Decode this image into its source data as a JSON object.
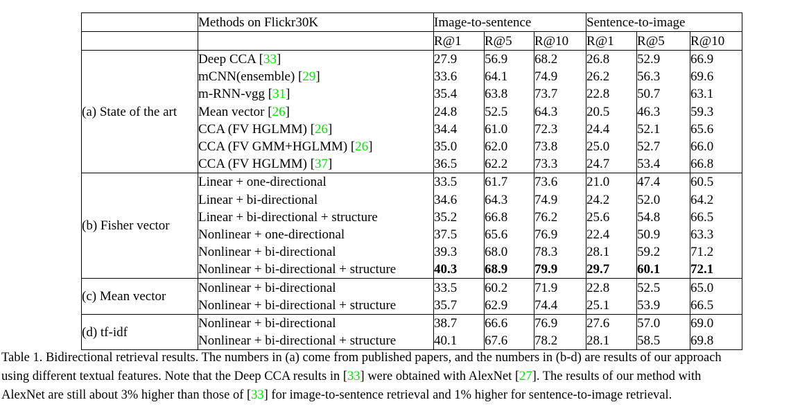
{
  "colors": {
    "citation_green": "#00E600",
    "text": "#000000",
    "border": "#000000",
    "background": "#ffffff"
  },
  "table": {
    "header": {
      "corner": "",
      "methods_label": "Methods on Flickr30K",
      "groups": [
        {
          "label": "Image-to-sentence"
        },
        {
          "label": "Sentence-to-image"
        }
      ],
      "metrics": [
        "R@1",
        "R@5",
        "R@10"
      ]
    },
    "sections": [
      {
        "label": "(a) State of the art",
        "rows": [
          {
            "method": "Deep CCA",
            "cite": "33",
            "i2s": [
              "27.9",
              "56.9",
              "68.2"
            ],
            "s2i": [
              "26.8",
              "52.9",
              "66.9"
            ],
            "bold": false
          },
          {
            "method": "mCNN(ensemble)",
            "cite": "29",
            "i2s": [
              "33.6",
              "64.1",
              "74.9"
            ],
            "s2i": [
              "26.2",
              "56.3",
              "69.6"
            ],
            "bold": false
          },
          {
            "method": "m-RNN-vgg",
            "cite": "31",
            "i2s": [
              "35.4",
              "63.8",
              "73.7"
            ],
            "s2i": [
              "22.8",
              "50.7",
              "63.1"
            ],
            "bold": false
          },
          {
            "method": "Mean vector",
            "cite": "26",
            "i2s": [
              "24.8",
              "52.5",
              "64.3"
            ],
            "s2i": [
              "20.5",
              "46.3",
              "59.3"
            ],
            "bold": false
          },
          {
            "method": "CCA (FV HGLMM)",
            "cite": "26",
            "i2s": [
              "34.4",
              "61.0",
              "72.3"
            ],
            "s2i": [
              "24.4",
              "52.1",
              "65.6"
            ],
            "bold": false
          },
          {
            "method": "CCA (FV GMM+HGLMM)",
            "cite": "26",
            "i2s": [
              "35.0",
              "62.0",
              "73.8"
            ],
            "s2i": [
              "25.0",
              "52.7",
              "66.0"
            ],
            "bold": false
          },
          {
            "method": "CCA (FV HGLMM)",
            "cite": "37",
            "i2s": [
              "36.5",
              "62.2",
              "73.3"
            ],
            "s2i": [
              "24.7",
              "53.4",
              "66.8"
            ],
            "bold": false
          }
        ]
      },
      {
        "label": "(b) Fisher vector",
        "rows": [
          {
            "method": "Linear + one-directional",
            "cite": null,
            "i2s": [
              "33.5",
              "61.7",
              "73.6"
            ],
            "s2i": [
              "21.0",
              "47.4",
              "60.5"
            ],
            "bold": false
          },
          {
            "method": "Linear + bi-directional",
            "cite": null,
            "i2s": [
              "34.6",
              "64.3",
              "74.9"
            ],
            "s2i": [
              "24.2",
              "52.0",
              "64.2"
            ],
            "bold": false
          },
          {
            "method": "Linear + bi-directional + structure",
            "cite": null,
            "i2s": [
              "35.2",
              "66.8",
              "76.2"
            ],
            "s2i": [
              "25.6",
              "54.8",
              "66.5"
            ],
            "bold": false
          },
          {
            "method": "Nonlinear + one-directional",
            "cite": null,
            "i2s": [
              "37.5",
              "65.6",
              "76.9"
            ],
            "s2i": [
              "22.4",
              "50.9",
              "63.3"
            ],
            "bold": false
          },
          {
            "method": "Nonlinear + bi-directional",
            "cite": null,
            "i2s": [
              "39.3",
              "68.0",
              "78.3"
            ],
            "s2i": [
              "28.1",
              "59.2",
              "71.2"
            ],
            "bold": false
          },
          {
            "method": "Nonlinear + bi-directional + structure",
            "cite": null,
            "i2s": [
              "40.3",
              "68.9",
              "79.9"
            ],
            "s2i": [
              "29.7",
              "60.1",
              "72.1"
            ],
            "bold": true
          }
        ]
      },
      {
        "label": "(c) Mean vector",
        "rows": [
          {
            "method": "Nonlinear + bi-directional",
            "cite": null,
            "i2s": [
              "33.5",
              "60.2",
              "71.9"
            ],
            "s2i": [
              "22.8",
              "52.5",
              "65.0"
            ],
            "bold": false
          },
          {
            "method": "Nonlinear + bi-directional + structure",
            "cite": null,
            "i2s": [
              "35.7",
              "62.9",
              "74.4"
            ],
            "s2i": [
              "25.1",
              "53.9",
              "66.5"
            ],
            "bold": false
          }
        ]
      },
      {
        "label": "(d) tf-idf",
        "rows": [
          {
            "method": "Nonlinear + bi-directional",
            "cite": null,
            "i2s": [
              "38.7",
              "66.6",
              "76.9"
            ],
            "s2i": [
              "27.6",
              "57.0",
              "69.0"
            ],
            "bold": false
          },
          {
            "method": "Nonlinear + bi-directional + structure",
            "cite": null,
            "i2s": [
              "40.1",
              "67.6",
              "78.2"
            ],
            "s2i": [
              "28.1",
              "58.5",
              "69.8"
            ],
            "bold": false
          }
        ]
      }
    ]
  },
  "caption": {
    "lines": [
      {
        "justify": true,
        "segments": [
          {
            "t": "Table 1. Bidirectional retrieval results. The numbers in (a) come from published papers, and the numbers in (b-d) are results of our approach"
          }
        ]
      },
      {
        "justify": true,
        "segments": [
          {
            "t": "using different textual features. Note that the Deep CCA results in ["
          },
          {
            "t": "33",
            "cite": true
          },
          {
            "t": "] were obtained with AlexNet ["
          },
          {
            "t": "27",
            "cite": true
          },
          {
            "t": "]. The results of our method with"
          }
        ]
      },
      {
        "justify": false,
        "segments": [
          {
            "t": "AlexNet are still about 3% higher than those of ["
          },
          {
            "t": "33",
            "cite": true
          },
          {
            "t": "] for image-to-sentence retrieval and 1% higher for sentence-to-image retrieval."
          }
        ]
      }
    ]
  }
}
